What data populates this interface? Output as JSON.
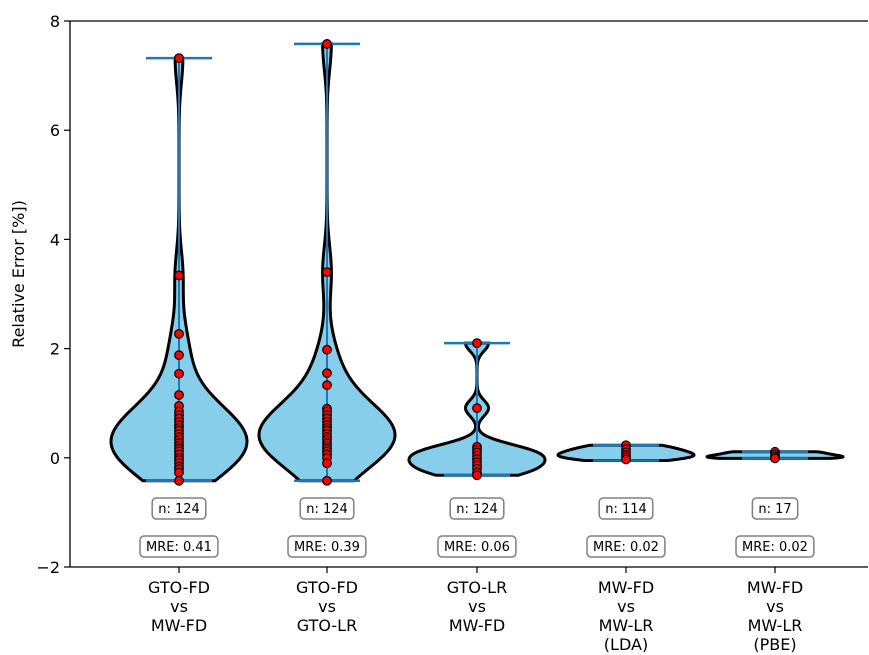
{
  "chart_data": {
    "type": "violin",
    "ylabel": "Relative Error [%])",
    "ylim": [
      -2,
      8
    ],
    "yticks": [
      -2,
      0,
      2,
      4,
      6,
      8
    ],
    "categories": [
      [
        "GTO-FD",
        "vs",
        "MW-FD"
      ],
      [
        "GTO-FD",
        "vs",
        "GTO-LR"
      ],
      [
        "GTO-LR",
        "vs",
        "MW-FD"
      ],
      [
        "MW-FD",
        "vs",
        "MW-LR",
        "(LDA)"
      ],
      [
        "MW-FD",
        "vs",
        "MW-LR",
        "(PBE)"
      ]
    ],
    "n_labels": [
      "n: 124",
      "n: 124",
      "n: 124",
      "n: 114",
      "n: 17"
    ],
    "mre_labels": [
      "MRE: 0.41",
      "MRE: 0.39",
      "MRE: 0.06",
      "MRE: 0.02",
      "MRE: 0.02"
    ],
    "series": [
      {
        "min": -0.42,
        "max": 7.32,
        "points": [
          7.32,
          3.34,
          2.27,
          1.88,
          1.54,
          1.15,
          0.95,
          0.85,
          0.78,
          0.72,
          0.66,
          0.6,
          0.55,
          0.5,
          0.44,
          0.38,
          0.33,
          0.27,
          0.22,
          0.17,
          0.12,
          0.06,
          0.0,
          -0.04,
          -0.1,
          -0.16,
          -0.21,
          -0.27,
          -0.42
        ]
      },
      {
        "min": -0.42,
        "max": 7.58,
        "points": [
          7.58,
          3.4,
          1.98,
          1.55,
          1.33,
          0.9,
          0.85,
          0.78,
          0.72,
          0.66,
          0.6,
          0.55,
          0.5,
          0.44,
          0.38,
          0.33,
          0.27,
          0.22,
          0.17,
          0.12,
          0.06,
          0.0,
          -0.1,
          -0.42
        ]
      },
      {
        "min": -0.32,
        "max": 2.1,
        "points": [
          2.1,
          0.91,
          0.2,
          0.15,
          0.1,
          0.04,
          -0.02,
          -0.08,
          -0.14,
          -0.2,
          -0.27,
          -0.32
        ]
      },
      {
        "min": -0.05,
        "max": 0.23,
        "points": [
          0.23,
          0.16,
          0.1,
          0.05,
          0.01,
          -0.03
        ]
      },
      {
        "min": -0.01,
        "max": 0.11,
        "points": [
          0.11,
          0.06,
          0.02,
          -0.01
        ]
      }
    ],
    "fill_color": "#87ceeb",
    "line_color": "#1f77b4",
    "point_color": "#ff0000",
    "outline_color": "#000000"
  }
}
